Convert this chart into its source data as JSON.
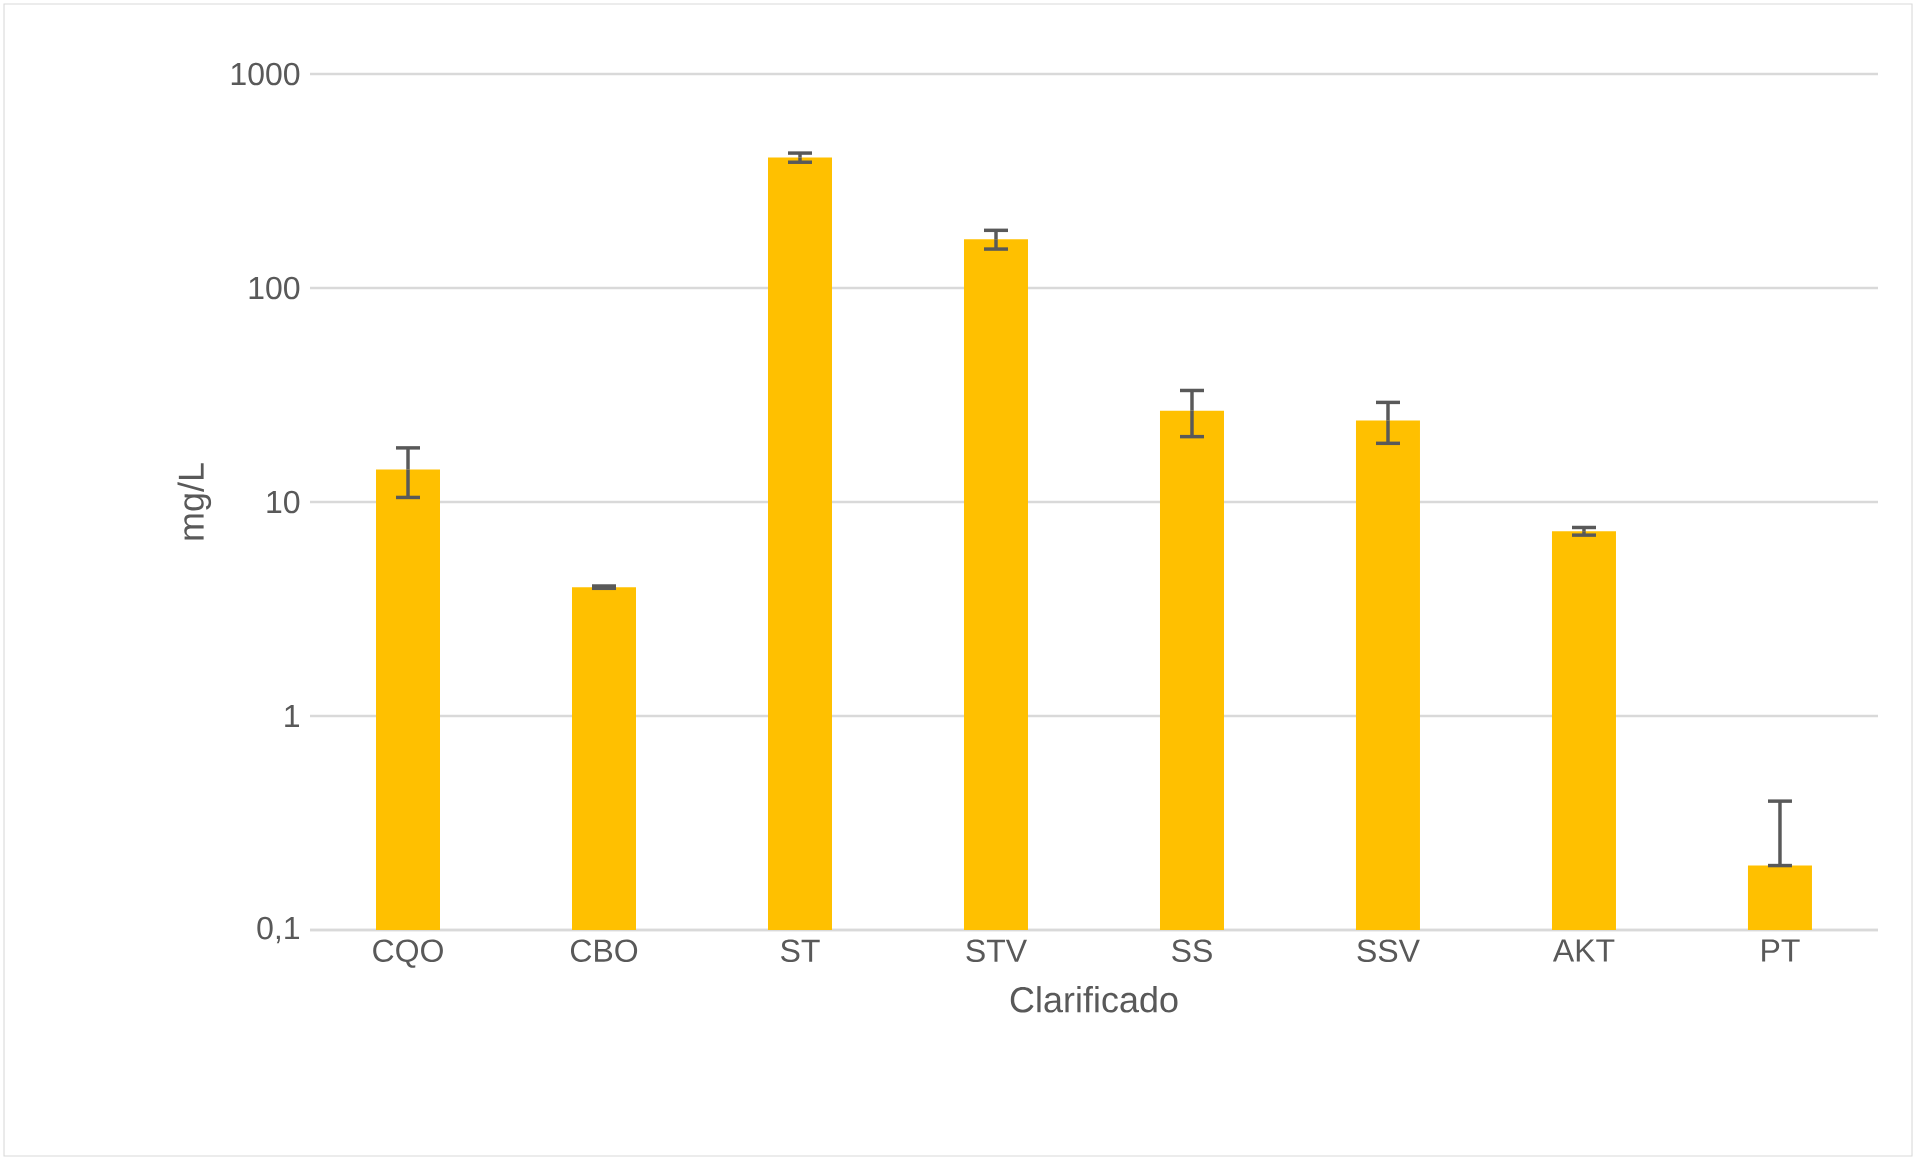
{
  "chart_data": {
    "type": "bar",
    "xlabel": "Clarificado",
    "ylabel": "mg/L",
    "categories": [
      "CQO",
      "CBO",
      "ST",
      "STV",
      "SS",
      "SSV",
      "AKT",
      "PT"
    ],
    "values": [
      14.2,
      4.0,
      407,
      169,
      26.7,
      24,
      7.3,
      0.2
    ],
    "errors": [
      3.7,
      0.05,
      20,
      17,
      6.5,
      5.2,
      0.3,
      [
        0.2,
        0.4
      ]
    ],
    "color": "#ffc000",
    "log": "y",
    "ylim": [
      0.1,
      1000
    ],
    "yticks": [
      {
        "value": 0.1,
        "label": "0,1"
      },
      1,
      10,
      100,
      1000
    ],
    "grid": "y"
  }
}
